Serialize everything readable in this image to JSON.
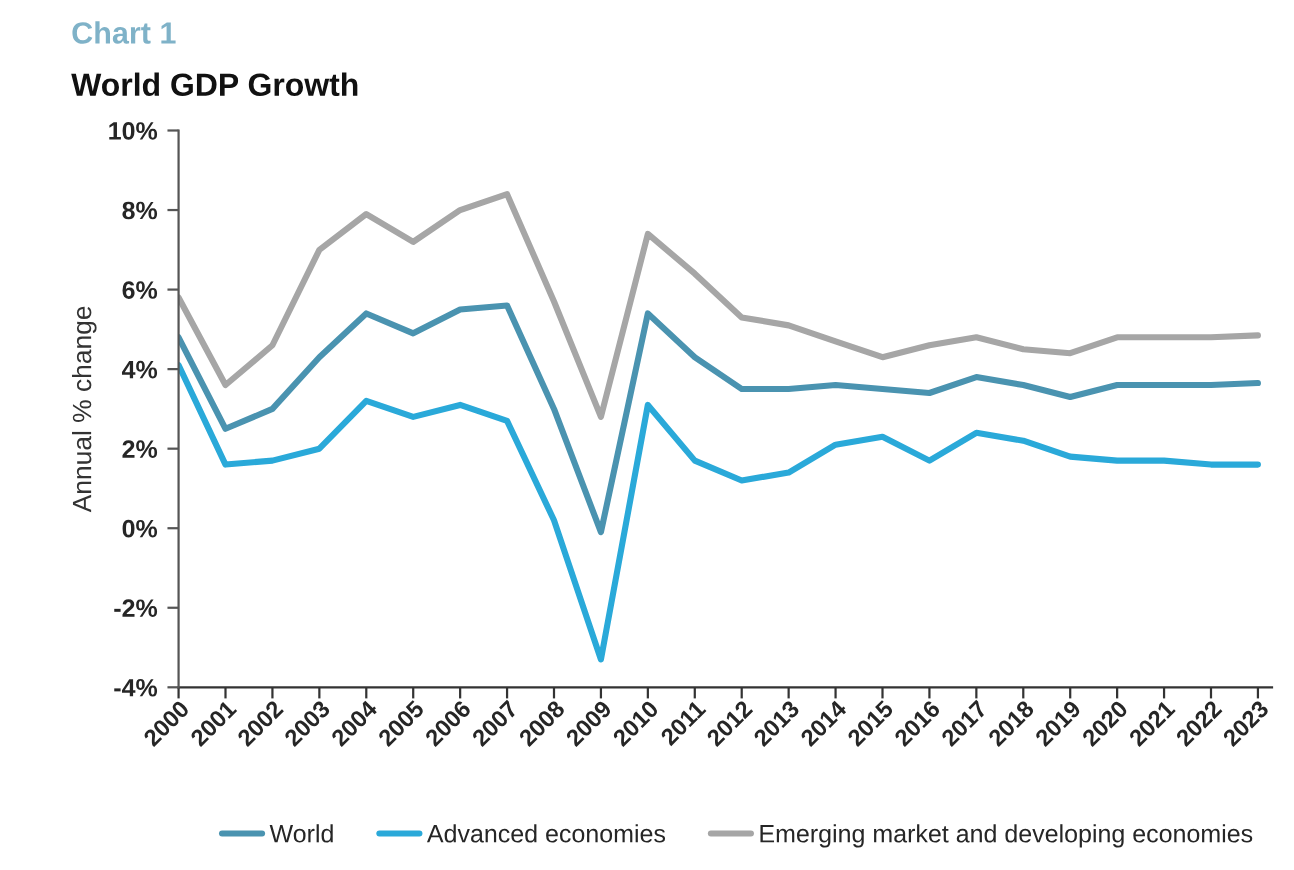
{
  "chart_data": {
    "type": "line",
    "title": "Chart 1",
    "subtitle": "World GDP Growth",
    "ylabel": "Annual % change",
    "categories": [
      "2000",
      "2001",
      "2002",
      "2003",
      "2004",
      "2005",
      "2006",
      "2007",
      "2008",
      "2009",
      "2010",
      "2011",
      "2012",
      "2013",
      "2014",
      "2015",
      "2016",
      "2017",
      "2018",
      "2019",
      "2020",
      "2021",
      "2022",
      "2023"
    ],
    "series": [
      {
        "name": "World",
        "color": "#4a93b0",
        "values": [
          4.8,
          2.5,
          3.0,
          4.3,
          5.4,
          4.9,
          5.5,
          5.6,
          3.0,
          -0.1,
          5.4,
          4.3,
          3.5,
          3.5,
          3.6,
          3.5,
          3.4,
          3.8,
          3.6,
          3.3,
          3.6,
          3.6,
          3.6,
          3.65
        ]
      },
      {
        "name": "Advanced economies",
        "color": "#2aa9d9",
        "values": [
          4.1,
          1.6,
          1.7,
          2.0,
          3.2,
          2.8,
          3.1,
          2.7,
          0.2,
          -3.3,
          3.1,
          1.7,
          1.2,
          1.4,
          2.1,
          2.3,
          1.7,
          2.4,
          2.2,
          1.8,
          1.7,
          1.7,
          1.6,
          1.6
        ]
      },
      {
        "name": "Emerging market and developing economies",
        "color": "#a6a6a6",
        "values": [
          5.8,
          3.6,
          4.6,
          7.0,
          7.9,
          7.2,
          8.0,
          8.4,
          5.7,
          2.8,
          7.4,
          6.4,
          5.3,
          5.1,
          4.7,
          4.3,
          4.6,
          4.8,
          4.5,
          4.4,
          4.8,
          4.8,
          4.8,
          4.85
        ]
      }
    ],
    "ylim": [
      -4,
      10
    ],
    "yticks": [
      {
        "value": -4,
        "label": "-4%"
      },
      {
        "value": -2,
        "label": "-2%"
      },
      {
        "value": 0,
        "label": "0%"
      },
      {
        "value": 2,
        "label": "2%"
      },
      {
        "value": 4,
        "label": "4%"
      },
      {
        "value": 6,
        "label": "6%"
      },
      {
        "value": 8,
        "label": "8%"
      },
      {
        "value": 10,
        "label": "10%"
      }
    ],
    "grid": false,
    "legend": "bottom",
    "marker": "none",
    "line_style": "solid"
  }
}
